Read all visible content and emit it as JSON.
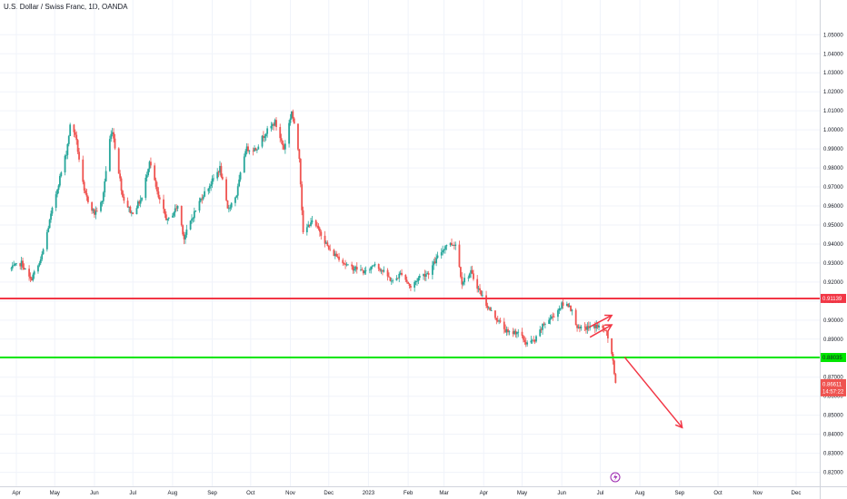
{
  "header": {
    "title": "U.S. Dollar / Swiss Franc, 1D, OANDA"
  },
  "colors": {
    "up": "#26a69a",
    "down": "#ef5350",
    "resistance": "#f23645",
    "support": "#00e600",
    "grid": "#f0f3fa",
    "axis_text": "#131722",
    "arrow": "#f23645",
    "last_price_bg": "#ef5350"
  },
  "icons": {
    "lightning": "lightning-icon"
  },
  "chart_data": {
    "type": "candlestick",
    "symbol": "U.S. Dollar / Swiss Franc",
    "interval": "1D",
    "source": "OANDA",
    "x_tick_labels": [
      "Apr",
      "May",
      "Jun",
      "Jul",
      "Aug",
      "Sep",
      "Oct",
      "Nov",
      "Dec",
      "2023",
      "Feb",
      "Mar",
      "Apr",
      "May",
      "Jun",
      "Jul",
      "Aug",
      "Sep",
      "Oct",
      "Nov",
      "Dec"
    ],
    "y_tick_labels": [
      "1.05000",
      "1.04000",
      "1.03000",
      "1.02000",
      "1.01000",
      "1.00000",
      "0.99000",
      "0.98000",
      "0.97000",
      "0.96000",
      "0.95000",
      "0.94000",
      "0.93000",
      "0.92000",
      "0.91000",
      "0.90000",
      "0.89000",
      "0.88000",
      "0.87000",
      "0.86000",
      "0.85000",
      "0.84000",
      "0.83000",
      "0.82000"
    ],
    "ylim": [
      0.8155,
      1.0635
    ],
    "price_path": [
      [
        "2022-03-28",
        0.927
      ],
      [
        "2022-04-05",
        0.93
      ],
      [
        "2022-04-12",
        0.921
      ],
      [
        "2022-04-20",
        0.931
      ],
      [
        "2022-04-28",
        0.955
      ],
      [
        "2022-05-05",
        0.975
      ],
      [
        "2022-05-10",
        0.988
      ],
      [
        "2022-05-13",
        1.002
      ],
      [
        "2022-05-17",
        0.998
      ],
      [
        "2022-05-24",
        0.967
      ],
      [
        "2022-06-01",
        0.956
      ],
      [
        "2022-06-07",
        0.962
      ],
      [
        "2022-06-13",
        0.995
      ],
      [
        "2022-06-15",
        1.0
      ],
      [
        "2022-06-23",
        0.965
      ],
      [
        "2022-06-30",
        0.956
      ],
      [
        "2022-07-08",
        0.964
      ],
      [
        "2022-07-14",
        0.984
      ],
      [
        "2022-07-21",
        0.964
      ],
      [
        "2022-07-28",
        0.952
      ],
      [
        "2022-08-05",
        0.96
      ],
      [
        "2022-08-10",
        0.943
      ],
      [
        "2022-08-17",
        0.955
      ],
      [
        "2022-08-24",
        0.965
      ],
      [
        "2022-08-31",
        0.972
      ],
      [
        "2022-09-07",
        0.98
      ],
      [
        "2022-09-13",
        0.958
      ],
      [
        "2022-09-20",
        0.966
      ],
      [
        "2022-09-27",
        0.99
      ],
      [
        "2022-10-05",
        0.99
      ],
      [
        "2022-10-12",
        0.998
      ],
      [
        "2022-10-20",
        1.004
      ],
      [
        "2022-10-27",
        0.99
      ],
      [
        "2022-11-02",
        1.01
      ],
      [
        "2022-11-08",
        0.986
      ],
      [
        "2022-11-11",
        0.945
      ],
      [
        "2022-11-17",
        0.952
      ],
      [
        "2022-11-24",
        0.947
      ],
      [
        "2022-12-02",
        0.936
      ],
      [
        "2022-12-09",
        0.933
      ],
      [
        "2022-12-16",
        0.928
      ],
      [
        "2022-12-23",
        0.927
      ],
      [
        "2022-12-30",
        0.925
      ],
      [
        "2023-01-06",
        0.93
      ],
      [
        "2023-01-13",
        0.925
      ],
      [
        "2023-01-20",
        0.92
      ],
      [
        "2023-01-27",
        0.925
      ],
      [
        "2023-02-03",
        0.917
      ],
      [
        "2023-02-10",
        0.923
      ],
      [
        "2023-02-17",
        0.925
      ],
      [
        "2023-02-24",
        0.933
      ],
      [
        "2023-03-03",
        0.94
      ],
      [
        "2023-03-10",
        0.94
      ],
      [
        "2023-03-15",
        0.92
      ],
      [
        "2023-03-22",
        0.925
      ],
      [
        "2023-03-29",
        0.915
      ],
      [
        "2023-04-05",
        0.906
      ],
      [
        "2023-04-12",
        0.9
      ],
      [
        "2023-04-20",
        0.893
      ],
      [
        "2023-04-27",
        0.894
      ],
      [
        "2023-05-04",
        0.888
      ],
      [
        "2023-05-11",
        0.889
      ],
      [
        "2023-05-18",
        0.898
      ],
      [
        "2023-05-25",
        0.902
      ],
      [
        "2023-06-01",
        0.908
      ],
      [
        "2023-06-07",
        0.908
      ],
      [
        "2023-06-14",
        0.895
      ],
      [
        "2023-06-21",
        0.896
      ],
      [
        "2023-06-28",
        0.897
      ],
      [
        "2023-07-04",
        0.895
      ],
      [
        "2023-07-06",
        0.893
      ],
      [
        "2023-07-10",
        0.883
      ],
      [
        "2023-07-13",
        0.866
      ]
    ],
    "horizontal_levels": [
      {
        "label": "0.91139",
        "value": 0.91139,
        "color": "#f23645"
      },
      {
        "label": "0.88035",
        "value": 0.88035,
        "color": "#00e600"
      }
    ],
    "last_price": {
      "label": "0.86611",
      "value": 0.86611,
      "countdown": "14:57:22"
    },
    "annotations": {
      "channel_arrows": [
        [
          [
            "2023-06-23",
            0.8965
          ],
          [
            "2023-07-10",
            0.9025
          ]
        ],
        [
          [
            "2023-06-23",
            0.891
          ],
          [
            "2023-07-10",
            0.8975
          ]
        ]
      ],
      "projection_arrow": [
        [
          "2023-07-20",
          0.8805
        ],
        [
          "2023-09-03",
          0.8435
        ]
      ]
    }
  }
}
